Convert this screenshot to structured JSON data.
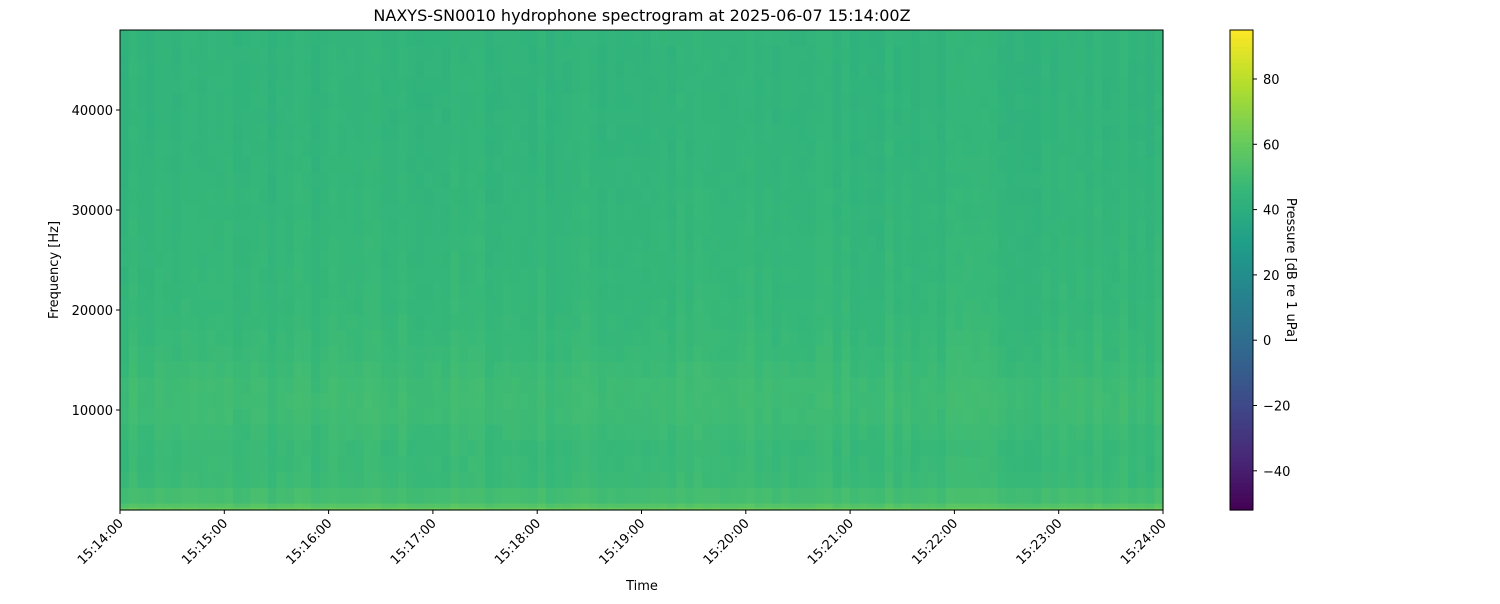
{
  "chart_data": {
    "type": "heatmap",
    "title": "NAXYS-SN0010 hydrophone spectrogram at 2025-06-07 15:14:00Z",
    "xlabel": "Time",
    "ylabel": "Frequency [Hz]",
    "colorbar_label": "Pressure [dB re 1 uPa]",
    "colormap": "viridis",
    "xlim": [
      "15:14:00",
      "15:24:00"
    ],
    "x_ticks": [
      "15:14:00",
      "15:15:00",
      "15:16:00",
      "15:17:00",
      "15:18:00",
      "15:19:00",
      "15:20:00",
      "15:21:00",
      "15:22:00",
      "15:23:00",
      "15:24:00"
    ],
    "ylim": [
      0,
      48000
    ],
    "y_ticks": [
      10000,
      20000,
      30000,
      40000
    ],
    "clim": [
      -52,
      95
    ],
    "colorbar_ticks": [
      -40,
      -20,
      0,
      20,
      40,
      60,
      80
    ],
    "frequency_profile": {
      "frequency_hz": [
        0,
        500,
        2000,
        6000,
        10000,
        12000,
        16000,
        20000,
        30000,
        40000,
        48000
      ],
      "level_db": [
        62,
        55,
        48,
        47,
        49,
        49,
        47,
        46,
        45,
        44,
        44
      ]
    },
    "grid": false
  }
}
